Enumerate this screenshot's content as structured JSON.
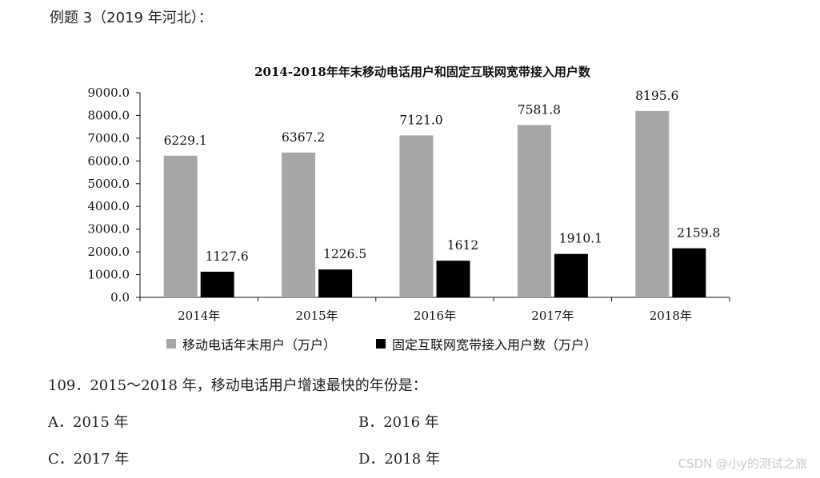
{
  "heading": "例题 3（2019 年河北）：",
  "chart_data": {
    "type": "bar",
    "title": "2014-2018年年末移动电话用户和固定互联网宽带接入用户数",
    "categories": [
      "2014年",
      "2015年",
      "2016年",
      "2017年",
      "2018年"
    ],
    "ylim": [
      0,
      9000
    ],
    "yticks": [
      "9000.0",
      "8000.0",
      "7000.0",
      "6000.0",
      "5000.0",
      "4000.0",
      "3000.0",
      "2000.0",
      "1000.0",
      "0.0"
    ],
    "series": [
      {
        "name": "移动电话年末用户（万户）",
        "color": "#a6a6a6",
        "values": [
          6229.1,
          6367.2,
          7121.0,
          7581.8,
          8195.6
        ],
        "labels": [
          "6229.1",
          "6367.2",
          "7121.0",
          "7581.8",
          "8195.6"
        ]
      },
      {
        "name": "固定互联网宽带接入用户数（万户）",
        "color": "#000000",
        "values": [
          1127.6,
          1226.5,
          1612,
          1910.1,
          2159.8
        ],
        "labels": [
          "1127.6",
          "1226.5",
          "1612",
          "1910.1",
          "2159.8"
        ]
      }
    ],
    "legend_position": "bottom",
    "grid": false
  },
  "question": {
    "text": "109．2015～2018 年，移动电话用户增速最快的年份是：",
    "options": {
      "a": "A．2015 年",
      "b": "B．2016 年",
      "c": "C．2017 年",
      "d": "D．2018 年"
    }
  },
  "watermark": "CSDN @小y的测试之旅"
}
